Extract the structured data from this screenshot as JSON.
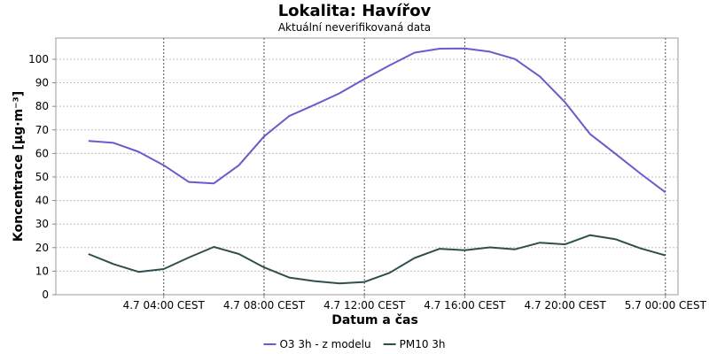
{
  "chart_data": {
    "type": "line",
    "title": "Lokalita: Havířov",
    "subtitle": "Aktuální neverifikovaná data",
    "xlabel": "Datum a čas",
    "ylabel": "Koncentrace [µg·m⁻³]",
    "x_ticks": [
      "4.7 04:00 CEST",
      "4.7 08:00 CEST",
      "4.7 12:00 CEST",
      "4.7 16:00 CEST",
      "4.7 20:00 CEST",
      "5.7 00:00 CEST"
    ],
    "x_tick_hours": [
      4,
      8,
      12,
      16,
      20,
      24
    ],
    "x_range_hours": [
      -0.3,
      24.5
    ],
    "ylim": [
      0,
      109
    ],
    "y_ticks": [
      0,
      10,
      20,
      30,
      40,
      50,
      60,
      70,
      80,
      90,
      100
    ],
    "grid": true,
    "legend_position": "bottom",
    "x_hours": [
      1,
      2,
      3,
      4,
      5,
      6,
      7,
      8,
      9,
      10,
      11,
      12,
      13,
      14,
      15,
      16,
      17,
      18,
      19,
      20,
      21,
      22,
      23,
      24
    ],
    "series": [
      {
        "name": "O3 3h - z modelu",
        "color": "#6a5acd",
        "values": [
          65.3,
          64.5,
          60.7,
          55,
          47.9,
          47.3,
          55,
          67.2,
          75.9,
          80.6,
          85.5,
          91.6,
          97.4,
          102.8,
          104.5,
          104.6,
          103.2,
          100.1,
          92.6,
          81.7,
          68.2,
          59.9,
          51.5,
          43.5
        ]
      },
      {
        "name": "PM10 3h",
        "color": "#2f4f4f",
        "values": [
          17.3,
          13,
          9.7,
          10.9,
          15.8,
          20.3,
          17.3,
          11.6,
          7.3,
          5.8,
          4.8,
          5.4,
          9.3,
          15.6,
          19.5,
          18.9,
          20.1,
          19.3,
          22.1,
          21.4,
          25.3,
          23.6,
          19.7,
          16.7
        ]
      }
    ]
  }
}
